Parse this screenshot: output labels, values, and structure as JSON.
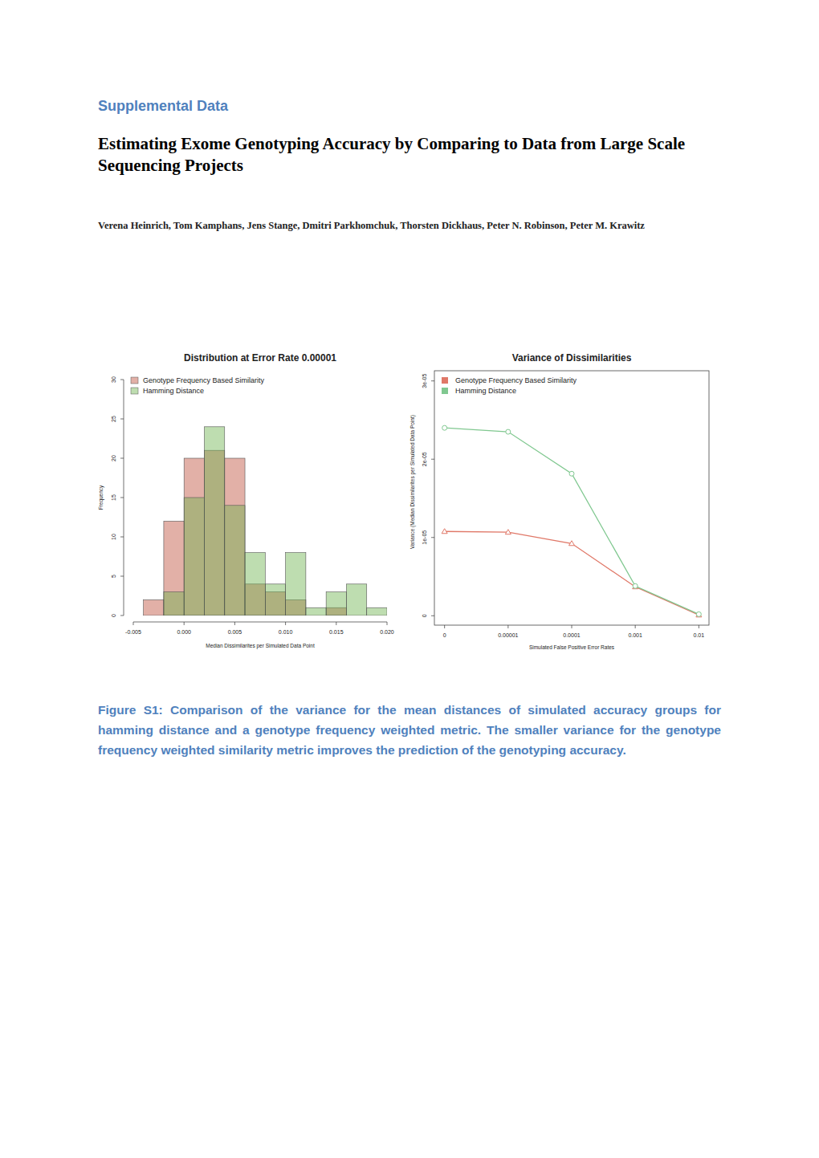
{
  "header": {
    "label": "Supplemental Data",
    "title": "Estimating Exome Genotyping Accuracy by Comparing to Data from Large Scale Sequencing Projects",
    "authors": "Verena Heinrich, Tom Kamphans, Jens Stange, Dmitri Parkhomchuk, Thorsten Dickhaus, Peter N. Robinson, Peter M. Krawitz"
  },
  "chart_data": [
    {
      "type": "histogram",
      "title": "Distribution at Error Rate 0.00001",
      "x_label": "Median Dissimilarites per Simulated Data Point",
      "y_label": "Frequency",
      "bins": [
        -0.004,
        -0.002,
        0,
        0.002,
        0.004,
        0.006,
        0.008,
        0.01,
        0.012,
        0.014,
        0.016,
        0.018,
        0.02
      ],
      "series": [
        {
          "name": "Genotype Frequency Based Similarity",
          "color": "#be503c",
          "values": [
            2,
            12,
            20,
            21,
            20,
            4,
            3,
            2,
            0,
            1,
            0,
            0
          ]
        },
        {
          "name": "Hamming Distance",
          "color": "#6eb450",
          "values": [
            0,
            3,
            15,
            24,
            14,
            8,
            4,
            8,
            1,
            3,
            4,
            1
          ]
        }
      ],
      "xlim": [
        -0.005,
        0.02
      ],
      "xticks": [
        -0.005,
        {
          "value": 0,
          "label": "0.000"
        },
        0.005,
        {
          "value": 0.01,
          "label": "0.010"
        },
        0.015,
        {
          "value": 0.02,
          "label": "0.020"
        }
      ],
      "ylim": [
        0,
        30
      ],
      "yticks": [
        0,
        5,
        10,
        15,
        20,
        25,
        30
      ],
      "grid": false,
      "legend": "top-left"
    },
    {
      "type": "line",
      "title": "Variance of Dissimilarities",
      "x_label": "Simulated False Positive Error Rates",
      "y_label": "Variance (Median Dissimilarites per Simulated Data Point)",
      "categories": [
        "0",
        "0.00001",
        "0.0001",
        "0.001",
        "0.01"
      ],
      "series": [
        {
          "name": "Genotype Frequency Based Similarity",
          "color": "#e07868",
          "marker": "triangle",
          "values": [
            1.077e-05,
            1.067e-05,
            9.23e-06,
            3.7e-06,
            1e-07
          ]
        },
        {
          "name": "Hamming Distance",
          "color": "#80c890",
          "marker": "circle",
          "values": [
            2.4e-05,
            2.35e-05,
            1.815e-05,
            3.8e-06,
            2e-07
          ]
        }
      ],
      "ylim": [
        -1.2e-06,
        3.13e-05
      ],
      "yticks": [
        0,
        {
          "value": 1e-05,
          "label": "1e-05"
        },
        {
          "value": 2e-05,
          "label": "2e-05"
        },
        {
          "value": 3e-05,
          "label": "3e-05"
        }
      ],
      "grid": false,
      "legend": "top-left"
    }
  ],
  "caption": "Figure S1: Comparison of the variance for the mean distances of simulated accuracy groups for hamming distance and a genotype frequency weighted metric. The smaller variance for the genotype frequency weighted similarity metric improves the prediction of the genotyping accuracy."
}
